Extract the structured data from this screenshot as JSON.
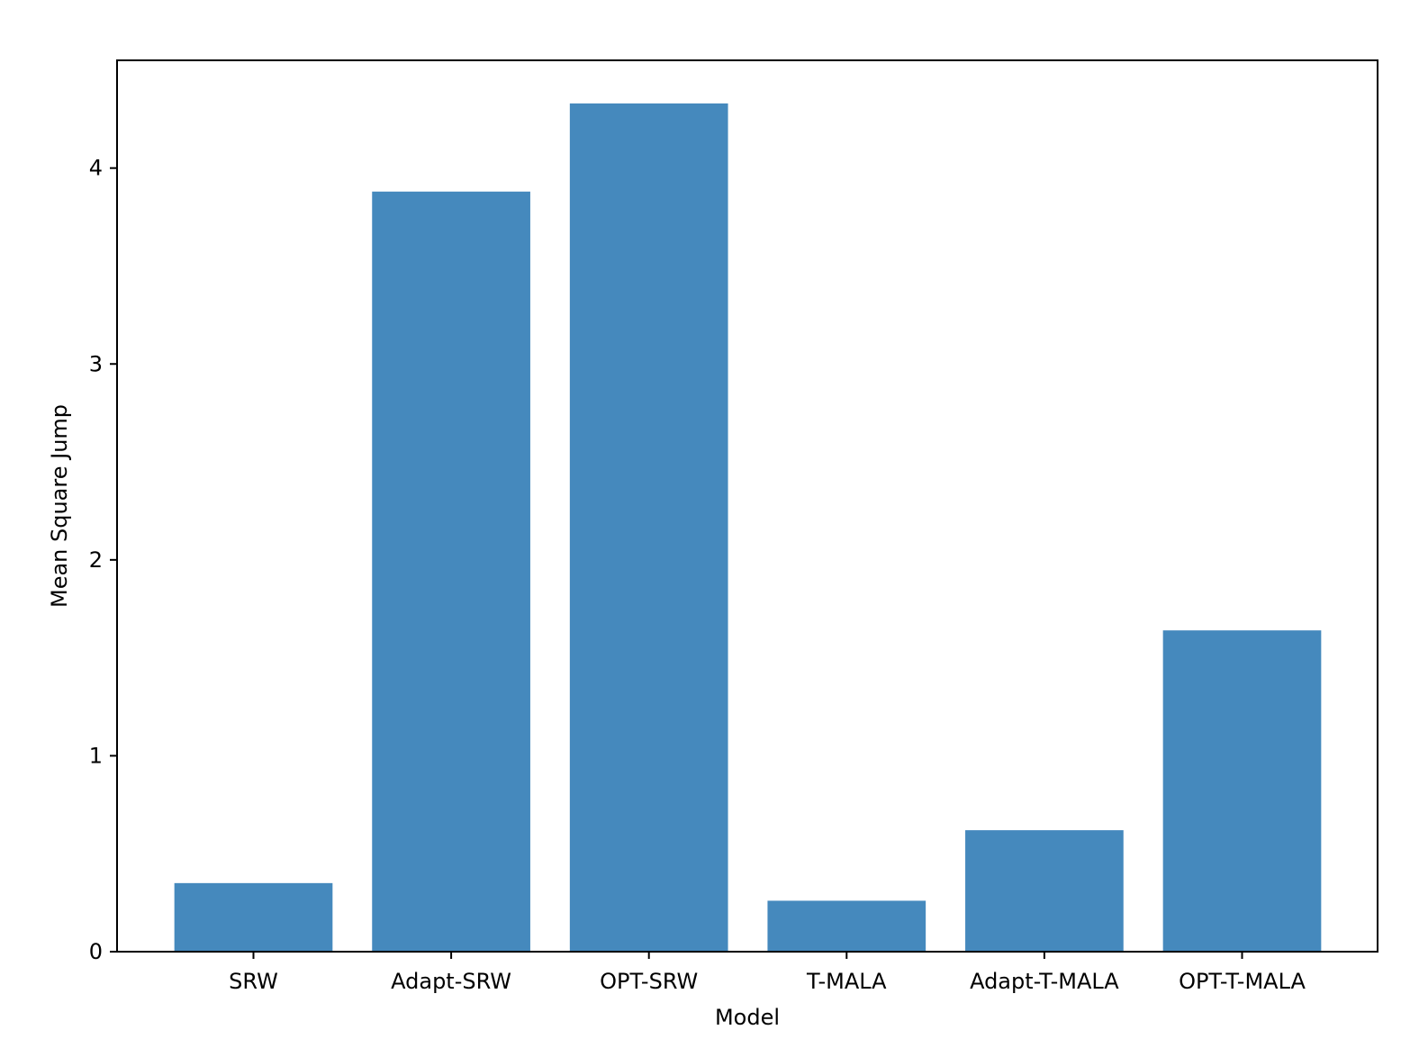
{
  "chart_data": {
    "type": "bar",
    "title": "",
    "xlabel": "Model",
    "ylabel": "Mean Square Jump",
    "categories": [
      "SRW",
      "Adapt-SRW",
      "OPT-SRW",
      "T-MALA",
      "Adapt-T-MALA",
      "OPT-T-MALA"
    ],
    "values": [
      0.35,
      3.88,
      4.33,
      0.26,
      0.62,
      1.64
    ],
    "ylim": [
      0,
      4.55
    ],
    "yticks": [
      "0",
      "1",
      "2",
      "3",
      "4"
    ],
    "grid": false,
    "legend": "none",
    "bar_color": "#4589bd"
  }
}
